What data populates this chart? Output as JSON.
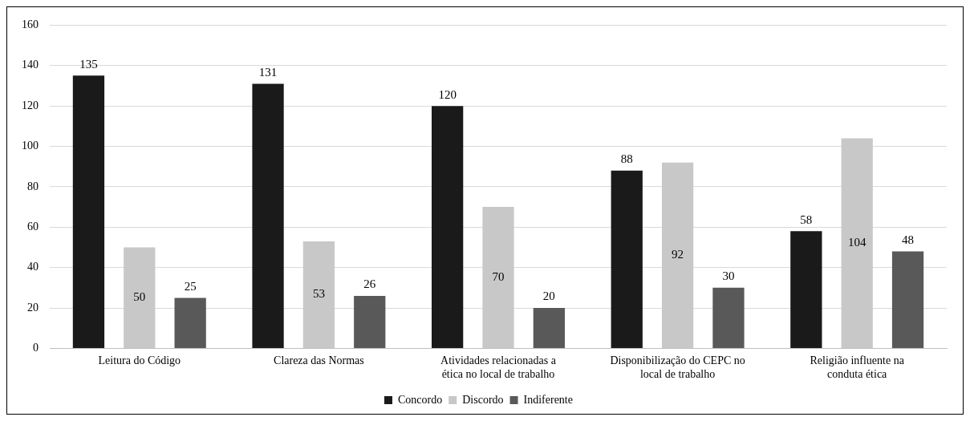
{
  "chart_data": {
    "type": "bar",
    "categories": [
      "Leitura do Código",
      "Clareza das Normas",
      "Atividades relacionadas a ética no local de trabalho",
      "Disponibilização do CEPC no local de trabalho",
      "Religião influente na conduta ética"
    ],
    "series": [
      {
        "name": "Concordo",
        "color": "#1a1a1a",
        "values": [
          135,
          131,
          120,
          88,
          58
        ]
      },
      {
        "name": "Discordo",
        "color": "#c8c8c8",
        "values": [
          50,
          53,
          70,
          92,
          104
        ]
      },
      {
        "name": "Indiferente",
        "color": "#595959",
        "values": [
          25,
          26,
          20,
          30,
          48
        ]
      }
    ],
    "ylim": [
      0,
      160
    ],
    "yticks": [
      0,
      20,
      40,
      60,
      80,
      100,
      120,
      140,
      160
    ],
    "grid": "y",
    "legend": "bottom",
    "data_labels": true
  }
}
